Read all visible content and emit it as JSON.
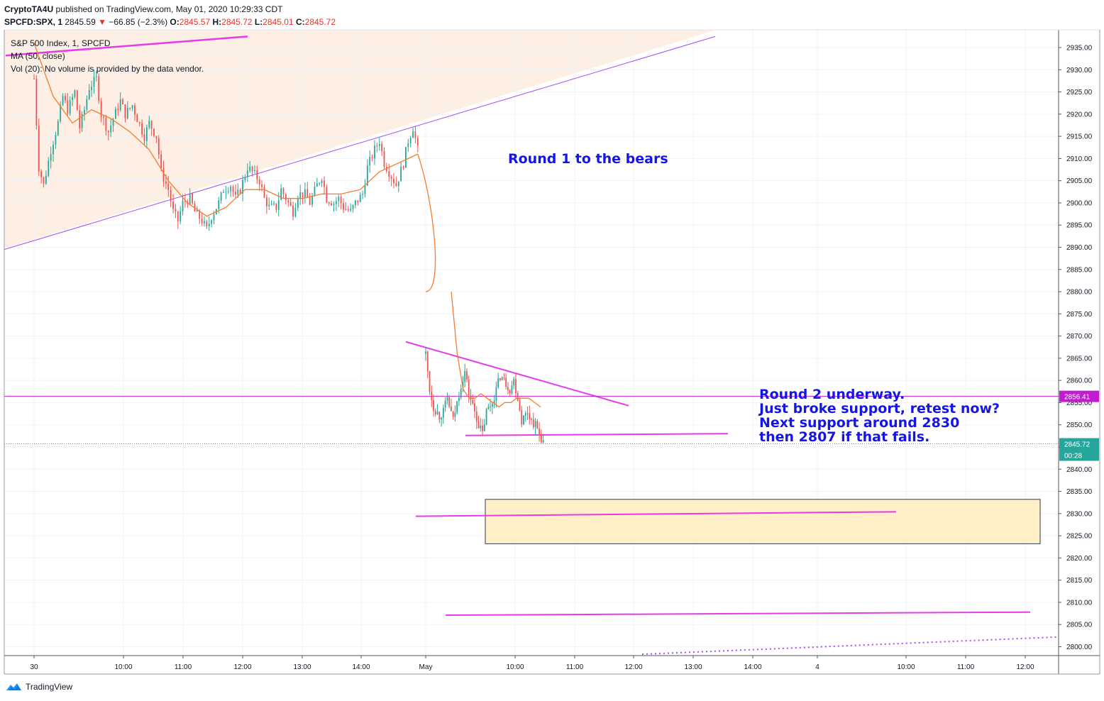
{
  "header": {
    "author": "CryptoTA4U",
    "published": "published on TradingView.com, May 01, 2020 10:29:33 CDT",
    "symbol": "SPCFD:SPX, 1",
    "price": "2845.59",
    "change_arrow": "▼",
    "change": "−66.85 (−2.3%)",
    "o_label": "O:",
    "o_val": "2845.57",
    "h_label": "H:",
    "h_val": "2845.72",
    "l_label": "L:",
    "l_val": "2845.01",
    "c_label": "C:",
    "c_val": "2845.72"
  },
  "legend": {
    "title": "S&P 500 Index, 1, SPCFD",
    "ma": "MA (50, close)",
    "vol": "Vol (20): No volume is provided by the data vendor."
  },
  "footer": {
    "brand": "TradingView",
    "icon": "tradingview-logo-icon"
  },
  "colors": {
    "up": "#26a69a",
    "down": "#ef5350",
    "ma": "#f57c2a",
    "trend_purple": "#a64bf4",
    "magenta": "#e53be8",
    "annotation": "#1515e8",
    "wedge_fill": "#fdefe4",
    "box_fill": "#fff0c8",
    "last_price": "#26a69a"
  },
  "chart_data": {
    "type": "candlestick",
    "title": "S&P 500 Index, 1, SPCFD",
    "ylim": [
      2798,
      2939
    ],
    "y_ticks": [
      "2935.00",
      "2930.00",
      "2925.00",
      "2920.00",
      "2915.00",
      "2910.00",
      "2905.00",
      "2900.00",
      "2895.00",
      "2890.00",
      "2885.00",
      "2880.00",
      "2875.00",
      "2870.00",
      "2865.00",
      "2860.00",
      "2855.00",
      "2850.00",
      "2845.00",
      "2840.00",
      "2835.00",
      "2830.00",
      "2825.00",
      "2820.00",
      "2815.00",
      "2810.00",
      "2805.00",
      "2800.00"
    ],
    "x_ticks": [
      "30",
      "10:00",
      "11:00",
      "12:00",
      "13:00",
      "14:00",
      "May",
      "10:00",
      "11:00",
      "12:00",
      "13:00",
      "14:00",
      "4",
      "10:00",
      "11:00",
      "12:00"
    ],
    "price_labels": {
      "horizontal_level": "2856.41",
      "last_price": "2845.72",
      "countdown": "00:28"
    },
    "session1_path": [
      [
        0,
        2928
      ],
      [
        2,
        2908
      ],
      [
        4,
        2904
      ],
      [
        7,
        2912
      ],
      [
        10,
        2918
      ],
      [
        12,
        2924
      ],
      [
        14,
        2921
      ],
      [
        17,
        2925
      ],
      [
        19,
        2917
      ],
      [
        21,
        2921
      ],
      [
        23,
        2926
      ],
      [
        26,
        2928
      ],
      [
        28,
        2920
      ],
      [
        31,
        2916
      ],
      [
        33,
        2919
      ],
      [
        36,
        2923
      ],
      [
        38,
        2920
      ],
      [
        41,
        2922
      ],
      [
        43,
        2919
      ],
      [
        46,
        2915
      ],
      [
        48,
        2918
      ],
      [
        51,
        2915
      ],
      [
        53,
        2907
      ],
      [
        56,
        2903
      ],
      [
        58,
        2898
      ],
      [
        60,
        2896
      ],
      [
        62,
        2900
      ],
      [
        65,
        2901
      ],
      [
        67,
        2898
      ],
      [
        70,
        2896
      ],
      [
        72,
        2894
      ],
      [
        74,
        2897
      ],
      [
        77,
        2900
      ],
      [
        79,
        2903
      ],
      [
        82,
        2904
      ],
      [
        84,
        2901
      ],
      [
        86,
        2903
      ],
      [
        89,
        2908
      ],
      [
        91,
        2907
      ],
      [
        94,
        2905
      ],
      [
        96,
        2901
      ],
      [
        98,
        2899
      ],
      [
        101,
        2899
      ],
      [
        103,
        2903
      ],
      [
        106,
        2900
      ],
      [
        108,
        2898
      ],
      [
        110,
        2902
      ],
      [
        113,
        2902
      ],
      [
        115,
        2900
      ],
      [
        118,
        2904
      ],
      [
        120,
        2906
      ],
      [
        122,
        2901
      ],
      [
        125,
        2900
      ],
      [
        127,
        2901
      ],
      [
        129,
        2899
      ],
      [
        132,
        2898
      ],
      [
        134,
        2900
      ],
      [
        137,
        2902
      ],
      [
        139,
        2908
      ],
      [
        142,
        2912
      ],
      [
        144,
        2914
      ],
      [
        146,
        2909
      ],
      [
        149,
        2906
      ],
      [
        151,
        2904
      ],
      [
        154,
        2909
      ],
      [
        156,
        2914
      ],
      [
        158,
        2917
      ],
      [
        160,
        2912
      ]
    ],
    "session2_path": [
      [
        0,
        2866
      ],
      [
        2,
        2858
      ],
      [
        4,
        2854
      ],
      [
        7,
        2852
      ],
      [
        9,
        2853
      ],
      [
        11,
        2856
      ],
      [
        14,
        2851
      ],
      [
        16,
        2855
      ],
      [
        18,
        2859
      ],
      [
        20,
        2862
      ],
      [
        22,
        2857
      ],
      [
        25,
        2853
      ],
      [
        27,
        2850
      ],
      [
        29,
        2848
      ],
      [
        31,
        2853
      ],
      [
        34,
        2855
      ],
      [
        36,
        2858
      ],
      [
        38,
        2861
      ],
      [
        40,
        2860
      ],
      [
        43,
        2858
      ],
      [
        45,
        2860
      ],
      [
        47,
        2856
      ],
      [
        49,
        2851
      ],
      [
        52,
        2853
      ],
      [
        54,
        2851
      ],
      [
        56,
        2850
      ],
      [
        58,
        2848
      ],
      [
        60,
        2846
      ]
    ],
    "ma_session1": [
      [
        0,
        2936
      ],
      [
        8,
        2924
      ],
      [
        16,
        2918
      ],
      [
        24,
        2921
      ],
      [
        32,
        2919
      ],
      [
        40,
        2916
      ],
      [
        48,
        2912
      ],
      [
        56,
        2905
      ],
      [
        64,
        2900
      ],
      [
        72,
        2897
      ],
      [
        80,
        2899
      ],
      [
        88,
        2903
      ],
      [
        96,
        2903
      ],
      [
        104,
        2901
      ],
      [
        112,
        2901
      ],
      [
        120,
        2902
      ],
      [
        128,
        2902
      ],
      [
        136,
        2903
      ],
      [
        144,
        2907
      ],
      [
        152,
        2909
      ],
      [
        160,
        2911
      ]
    ],
    "ma_session2": [
      [
        0,
        2880
      ],
      [
        4,
        2866
      ],
      [
        8,
        2858
      ],
      [
        12,
        2856
      ],
      [
        16,
        2856
      ],
      [
        20,
        2857
      ],
      [
        24,
        2856
      ],
      [
        28,
        2855
      ],
      [
        32,
        2854
      ],
      [
        36,
        2855
      ],
      [
        40,
        2855
      ],
      [
        44,
        2856
      ],
      [
        48,
        2856
      ],
      [
        52,
        2856
      ],
      [
        56,
        2855
      ],
      [
        60,
        2854
      ]
    ],
    "annotations": {
      "round1": "Round 1 to the bears",
      "round2": [
        "Round 2 underway.",
        "Just broke support, retest now?",
        "Next support around 2830",
        "then 2807 if that fails."
      ]
    }
  }
}
